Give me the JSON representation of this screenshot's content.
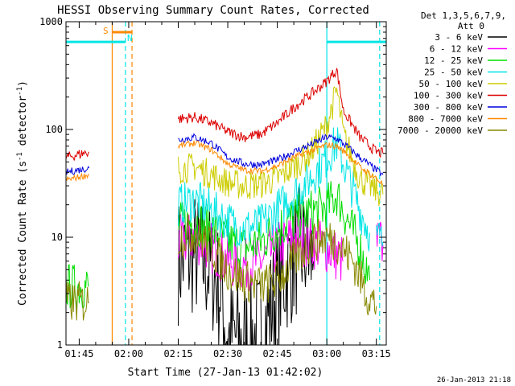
{
  "chart_data": {
    "type": "line",
    "title": "HESSI Observing Summary Count Rates, Corrected",
    "xlabel": "Start Time (27-Jan-13 01:42:02)",
    "ylabel_main": "Corrected Count Rate (s",
    "ylabel_sup1": "-1",
    "ylabel_mid": " detector",
    "ylabel_sup2": "-1",
    "ylabel_end": ")",
    "y_scale": "log",
    "ylim": [
      1,
      1000
    ],
    "xlim_minutes": [
      101,
      198
    ],
    "x_ticks": [
      {
        "label": "01:45",
        "minutes": 105
      },
      {
        "label": "02:00",
        "minutes": 120
      },
      {
        "label": "02:15",
        "minutes": 135
      },
      {
        "label": "02:30",
        "minutes": 150
      },
      {
        "label": "02:45",
        "minutes": 165
      },
      {
        "label": "03:00",
        "minutes": 180
      },
      {
        "label": "03:15",
        "minutes": 195
      }
    ],
    "y_ticks": [
      {
        "label": "1",
        "value": 1
      },
      {
        "label": "10",
        "value": 10
      },
      {
        "label": "100",
        "value": 100
      },
      {
        "label": "1000",
        "value": 1000
      }
    ],
    "legend": {
      "placement": "right",
      "header": [
        "Det 1,3,5,6,7,9,",
        "Att 0"
      ],
      "entries": [
        {
          "name": "3 - 6 keV",
          "color": "#000000"
        },
        {
          "name": "6 - 12 keV",
          "color": "#ff00ff"
        },
        {
          "name": "12 - 25 keV",
          "color": "#00dd00"
        },
        {
          "name": "25 - 50 keV",
          "color": "#00e5e5"
        },
        {
          "name": "50 - 100 keV",
          "color": "#cccc00"
        },
        {
          "name": "100 - 300 keV",
          "color": "#dd0000"
        },
        {
          "name": "300 - 800 keV",
          "color": "#0000dd"
        },
        {
          "name": "800 - 7000 keV",
          "color": "#ff8800"
        },
        {
          "name": "7000 - 20000 keV",
          "color": "#888800"
        }
      ]
    },
    "timestamp": "26-Jan-2013 21:18",
    "flags": {
      "saa_label": "S",
      "night_label": "N",
      "night_color": "#00e5e5",
      "saa_color": "#ff8800"
    },
    "series": [
      {
        "name": "3 - 6 keV",
        "color": "#000000",
        "noise": 0.6,
        "segments": [
          [
            [
              135,
              6
            ],
            [
              140,
              7
            ],
            [
              145,
              5
            ],
            [
              148,
              3
            ],
            [
              150,
              1.2
            ],
            [
              155,
              1.1
            ],
            [
              160,
              1.3
            ],
            [
              165,
              3
            ],
            [
              168,
              5
            ],
            [
              172,
              8
            ],
            [
              176,
              6
            ]
          ]
        ]
      },
      {
        "name": "6 - 12 keV",
        "color": "#ff00ff",
        "noise": 0.25,
        "segments": [
          [
            [
              135,
              9
            ],
            [
              140,
              10
            ],
            [
              145,
              8
            ],
            [
              150,
              6
            ],
            [
              155,
              5.5
            ],
            [
              160,
              6
            ],
            [
              165,
              8
            ],
            [
              170,
              10
            ],
            [
              175,
              9
            ],
            [
              180,
              8
            ],
            [
              185,
              6
            ]
          ],
          [
            [
              195,
              9
            ],
            [
              197,
              8.5
            ]
          ]
        ]
      },
      {
        "name": "12 - 25 keV",
        "color": "#00dd00",
        "noise": 0.22,
        "segments": [
          [
            [
              101,
              3.5
            ],
            [
              108,
              3.5
            ]
          ],
          [
            [
              135,
              13
            ],
            [
              140,
              14
            ],
            [
              145,
              12
            ],
            [
              150,
              9
            ],
            [
              155,
              8
            ],
            [
              160,
              9
            ],
            [
              165,
              12
            ],
            [
              170,
              15
            ],
            [
              175,
              17
            ],
            [
              180,
              19
            ],
            [
              183,
              25
            ],
            [
              186,
              15
            ],
            [
              190,
              8
            ],
            [
              193,
              4
            ]
          ]
        ]
      },
      {
        "name": "25 - 50 keV",
        "color": "#00e5e5",
        "noise": 0.2,
        "segments": [
          [
            [
              135,
              20
            ],
            [
              140,
              22
            ],
            [
              145,
              18
            ],
            [
              150,
              14
            ],
            [
              155,
              12
            ],
            [
              160,
              13
            ],
            [
              165,
              18
            ],
            [
              170,
              25
            ],
            [
              175,
              35
            ],
            [
              180,
              55
            ],
            [
              183,
              75
            ],
            [
              186,
              40
            ],
            [
              190,
              18
            ],
            [
              193,
              11
            ]
          ],
          [
            [
              195,
              10
            ],
            [
              197,
              9
            ]
          ]
        ]
      },
      {
        "name": "50 - 100 keV",
        "color": "#cccc00",
        "noise": 0.14,
        "segments": [
          [
            [
              135,
              43
            ],
            [
              140,
              45
            ],
            [
              145,
              38
            ],
            [
              150,
              32
            ],
            [
              155,
              30
            ],
            [
              160,
              31
            ],
            [
              165,
              35
            ],
            [
              170,
              45
            ],
            [
              175,
              60
            ],
            [
              180,
              110
            ],
            [
              183,
              230
            ],
            [
              185,
              90
            ],
            [
              190,
              35
            ],
            [
              195,
              27
            ],
            [
              197,
              25
            ]
          ]
        ]
      },
      {
        "name": "100 - 300 keV",
        "color": "#dd0000",
        "noise": 0.05,
        "segments": [
          [
            [
              101,
              55
            ],
            [
              108,
              62
            ]
          ],
          [
            [
              135,
              125
            ],
            [
              140,
              130
            ],
            [
              145,
              115
            ],
            [
              150,
              95
            ],
            [
              155,
              85
            ],
            [
              160,
              90
            ],
            [
              165,
              115
            ],
            [
              170,
              160
            ],
            [
              175,
              210
            ],
            [
              180,
              280
            ],
            [
              183,
              360
            ],
            [
              185,
              150
            ],
            [
              190,
              85
            ],
            [
              195,
              62
            ],
            [
              197,
              60
            ]
          ]
        ]
      },
      {
        "name": "300 - 800 keV",
        "color": "#0000dd",
        "noise": 0.035,
        "segments": [
          [
            [
              101,
              40
            ],
            [
              108,
              44
            ]
          ],
          [
            [
              135,
              80
            ],
            [
              140,
              85
            ],
            [
              145,
              75
            ],
            [
              150,
              55
            ],
            [
              155,
              48
            ],
            [
              160,
              47
            ],
            [
              165,
              52
            ],
            [
              170,
              62
            ],
            [
              175,
              72
            ],
            [
              180,
              85
            ],
            [
              183,
              82
            ],
            [
              186,
              70
            ],
            [
              190,
              55
            ],
            [
              195,
              42
            ],
            [
              197,
              38
            ]
          ]
        ]
      },
      {
        "name": "800 - 7000 keV",
        "color": "#ff8800",
        "noise": 0.03,
        "segments": [
          [
            [
              101,
              34
            ],
            [
              108,
              38
            ]
          ],
          [
            [
              135,
              70
            ],
            [
              140,
              75
            ],
            [
              145,
              65
            ],
            [
              150,
              48
            ],
            [
              155,
              42
            ],
            [
              160,
              41
            ],
            [
              165,
              46
            ],
            [
              170,
              55
            ],
            [
              175,
              63
            ],
            [
              180,
              72
            ],
            [
              183,
              70
            ],
            [
              186,
              60
            ],
            [
              190,
              45
            ],
            [
              195,
              35
            ],
            [
              197,
              31
            ]
          ]
        ]
      },
      {
        "name": "7000 - 20000 keV",
        "color": "#888800",
        "noise": 0.2,
        "segments": [
          [
            [
              101,
              2.5
            ],
            [
              108,
              2.5
            ]
          ],
          [
            [
              135,
              10
            ],
            [
              140,
              11
            ],
            [
              145,
              8
            ],
            [
              150,
              5
            ],
            [
              155,
              4
            ],
            [
              160,
              3.5
            ],
            [
              165,
              4
            ],
            [
              170,
              6
            ],
            [
              175,
              9
            ],
            [
              180,
              10
            ],
            [
              183,
              9
            ],
            [
              188,
              6
            ],
            [
              192,
              3
            ],
            [
              195,
              2.3
            ]
          ]
        ]
      }
    ],
    "flag_bars": [
      {
        "kind": "night",
        "color": "#00e5e5",
        "y": 650,
        "x": [
          101,
          119
        ]
      },
      {
        "kind": "night",
        "color": "#00e5e5",
        "y": 650,
        "x": [
          180,
          198
        ]
      },
      {
        "kind": "saa",
        "color": "#ff8800",
        "y": 800,
        "x": [
          115,
          121
        ]
      }
    ],
    "flag_lines": [
      {
        "color": "#ff8800",
        "style": "solid",
        "minutes": 115
      },
      {
        "color": "#00e5e5",
        "style": "dashed",
        "minutes": 119
      },
      {
        "color": "#ff8800",
        "style": "dashed",
        "minutes": 121
      },
      {
        "color": "#00e5e5",
        "style": "solid",
        "minutes": 180
      },
      {
        "color": "#00e5e5",
        "style": "dashed",
        "minutes": 196
      }
    ]
  }
}
